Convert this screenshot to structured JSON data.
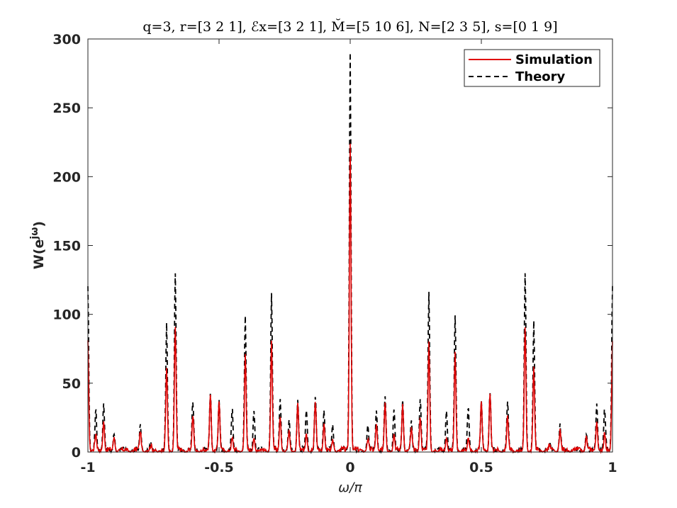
{
  "chart_data": {
    "type": "line",
    "title": "q=3, r=[3 2 1], ℰx=[3 2 1], M̆=[5 10 6], N=[2 3 5], s=[0 1 9]",
    "xlabel": "ω/π",
    "ylabel": "W(e",
    "ylabel_sup": "jω",
    "ylabel_close": ")",
    "xlim": [
      -1,
      1
    ],
    "ylim": [
      0,
      300
    ],
    "xticks": [
      -1,
      -0.5,
      0,
      0.5,
      1
    ],
    "xtick_labels": [
      "-1",
      "-0.5",
      "0",
      "0.5",
      "1"
    ],
    "yticks": [
      0,
      50,
      100,
      150,
      200,
      250,
      300
    ],
    "ytick_labels": [
      "0",
      "50",
      "100",
      "150",
      "200",
      "250",
      "300"
    ],
    "grid": false,
    "legend_position": "top-right",
    "series": [
      {
        "name": "Simulation",
        "color": "#e00000",
        "dash": "solid",
        "peaks": [
          [
            -1,
            80
          ],
          [
            -0.97,
            12
          ],
          [
            -0.94,
            22
          ],
          [
            -0.9,
            10
          ],
          [
            -0.8,
            14
          ],
          [
            -0.76,
            3
          ],
          [
            -0.7,
            60
          ],
          [
            -0.667,
            90
          ],
          [
            -0.6,
            25
          ],
          [
            -0.533,
            41
          ],
          [
            -0.5,
            36
          ],
          [
            -0.45,
            8
          ],
          [
            -0.4,
            70
          ],
          [
            -0.367,
            10
          ],
          [
            -0.3,
            78
          ],
          [
            -0.267,
            25
          ],
          [
            -0.233,
            15
          ],
          [
            -0.2,
            35
          ],
          [
            -0.167,
            12
          ],
          [
            -0.133,
            35
          ],
          [
            -0.1,
            20
          ],
          [
            -0.067,
            8
          ],
          [
            0,
            224
          ],
          [
            0.067,
            8
          ],
          [
            0.1,
            20
          ],
          [
            0.133,
            35
          ],
          [
            0.167,
            12
          ],
          [
            0.2,
            35
          ],
          [
            0.233,
            15
          ],
          [
            0.267,
            25
          ],
          [
            0.3,
            78
          ],
          [
            0.367,
            10
          ],
          [
            0.4,
            70
          ],
          [
            0.45,
            8
          ],
          [
            0.5,
            36
          ],
          [
            0.533,
            41
          ],
          [
            0.6,
            25
          ],
          [
            0.667,
            90
          ],
          [
            0.7,
            60
          ],
          [
            0.76,
            3
          ],
          [
            0.8,
            14
          ],
          [
            0.9,
            10
          ],
          [
            0.94,
            22
          ],
          [
            0.97,
            12
          ],
          [
            1,
            80
          ]
        ]
      },
      {
        "name": "Theory",
        "color": "#000000",
        "dash": "dashed",
        "peaks": [
          [
            -1,
            120
          ],
          [
            -0.97,
            30
          ],
          [
            -0.94,
            35
          ],
          [
            -0.9,
            12
          ],
          [
            -0.8,
            18
          ],
          [
            -0.76,
            5
          ],
          [
            -0.7,
            92
          ],
          [
            -0.667,
            130
          ],
          [
            -0.6,
            36
          ],
          [
            -0.533,
            42
          ],
          [
            -0.5,
            36
          ],
          [
            -0.45,
            30
          ],
          [
            -0.4,
            98
          ],
          [
            -0.367,
            30
          ],
          [
            -0.3,
            114
          ],
          [
            -0.267,
            38
          ],
          [
            -0.233,
            20
          ],
          [
            -0.2,
            37
          ],
          [
            -0.167,
            30
          ],
          [
            -0.133,
            38
          ],
          [
            -0.1,
            30
          ],
          [
            -0.067,
            18
          ],
          [
            0,
            290
          ],
          [
            0.067,
            18
          ],
          [
            0.1,
            30
          ],
          [
            0.133,
            38
          ],
          [
            0.167,
            30
          ],
          [
            0.2,
            37
          ],
          [
            0.233,
            20
          ],
          [
            0.267,
            38
          ],
          [
            0.3,
            114
          ],
          [
            0.367,
            30
          ],
          [
            0.4,
            98
          ],
          [
            0.45,
            30
          ],
          [
            0.5,
            36
          ],
          [
            0.533,
            42
          ],
          [
            0.6,
            36
          ],
          [
            0.667,
            130
          ],
          [
            0.7,
            92
          ],
          [
            0.76,
            5
          ],
          [
            0.8,
            18
          ],
          [
            0.9,
            12
          ],
          [
            0.94,
            35
          ],
          [
            0.97,
            30
          ],
          [
            1,
            120
          ]
        ]
      }
    ]
  }
}
